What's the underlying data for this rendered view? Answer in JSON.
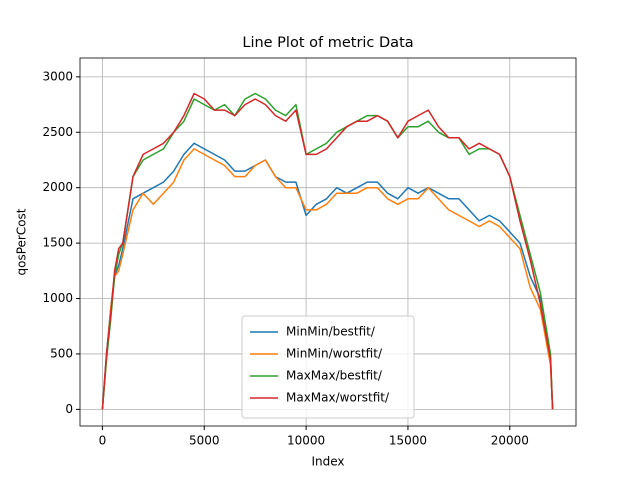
{
  "chart_data": {
    "type": "line",
    "title": "Line Plot of metric Data",
    "x_label": "Index",
    "y_label": "qosPerCost",
    "x": [
      0,
      200,
      400,
      600,
      800,
      1000,
      1500,
      2000,
      2500,
      3000,
      3500,
      4000,
      4500,
      5000,
      5500,
      6000,
      6500,
      7000,
      7500,
      8000,
      8500,
      9000,
      9500,
      10000,
      10500,
      11000,
      11500,
      12000,
      12500,
      13000,
      13500,
      14000,
      14500,
      15000,
      15500,
      16000,
      16500,
      17000,
      17500,
      18000,
      18500,
      19000,
      19500,
      20000,
      20500,
      21000,
      21500,
      22000,
      22100
    ],
    "series": [
      {
        "name": "MinMin/bestfit/",
        "color": "#1f77b4",
        "values": [
          0,
          500,
          900,
          1200,
          1300,
          1450,
          1900,
          1950,
          2000,
          2050,
          2150,
          2300,
          2400,
          2350,
          2300,
          2250,
          2150,
          2150,
          2200,
          2250,
          2100,
          2050,
          2050,
          1750,
          1850,
          1900,
          2000,
          1950,
          2000,
          2050,
          2050,
          1950,
          1900,
          2000,
          1950,
          2000,
          1950,
          1900,
          1900,
          1800,
          1700,
          1750,
          1700,
          1600,
          1500,
          1200,
          1000,
          450,
          0
        ]
      },
      {
        "name": "MinMin/worstfit/",
        "color": "#ff7f0e",
        "values": [
          0,
          450,
          900,
          1200,
          1250,
          1400,
          1800,
          1950,
          1850,
          1950,
          2050,
          2250,
          2350,
          2300,
          2250,
          2200,
          2100,
          2100,
          2200,
          2250,
          2100,
          2000,
          2000,
          1800,
          1800,
          1850,
          1950,
          1950,
          1950,
          2000,
          2000,
          1900,
          1850,
          1900,
          1900,
          2000,
          1900,
          1800,
          1750,
          1700,
          1650,
          1700,
          1650,
          1550,
          1450,
          1100,
          900,
          400,
          0
        ]
      },
      {
        "name": "MaxMax/bestfit/",
        "color": "#2ca02c",
        "values": [
          0,
          450,
          800,
          1200,
          1400,
          1500,
          2100,
          2250,
          2300,
          2350,
          2500,
          2600,
          2800,
          2750,
          2700,
          2750,
          2650,
          2800,
          2850,
          2800,
          2700,
          2650,
          2750,
          2300,
          2350,
          2400,
          2500,
          2550,
          2600,
          2650,
          2650,
          2600,
          2450,
          2550,
          2550,
          2600,
          2500,
          2450,
          2450,
          2300,
          2350,
          2350,
          2300,
          2100,
          1750,
          1400,
          1050,
          500,
          0
        ]
      },
      {
        "name": "MaxMax/worstfit/",
        "color": "#d62728",
        "values": [
          0,
          500,
          850,
          1250,
          1450,
          1500,
          2100,
          2300,
          2350,
          2400,
          2500,
          2650,
          2850,
          2800,
          2700,
          2700,
          2650,
          2750,
          2800,
          2750,
          2650,
          2600,
          2700,
          2300,
          2300,
          2350,
          2450,
          2550,
          2600,
          2600,
          2650,
          2600,
          2450,
          2600,
          2650,
          2700,
          2550,
          2450,
          2450,
          2350,
          2400,
          2350,
          2300,
          2100,
          1700,
          1350,
          950,
          450,
          0
        ]
      }
    ],
    "xlim": [
      -1100,
      23250
    ],
    "ylim": [
      -150,
      3170
    ],
    "xticks": [
      0,
      5000,
      10000,
      15000,
      20000
    ],
    "yticks": [
      0,
      500,
      1000,
      1500,
      2000,
      2500,
      3000
    ],
    "grid": true,
    "legend": "lower center"
  }
}
